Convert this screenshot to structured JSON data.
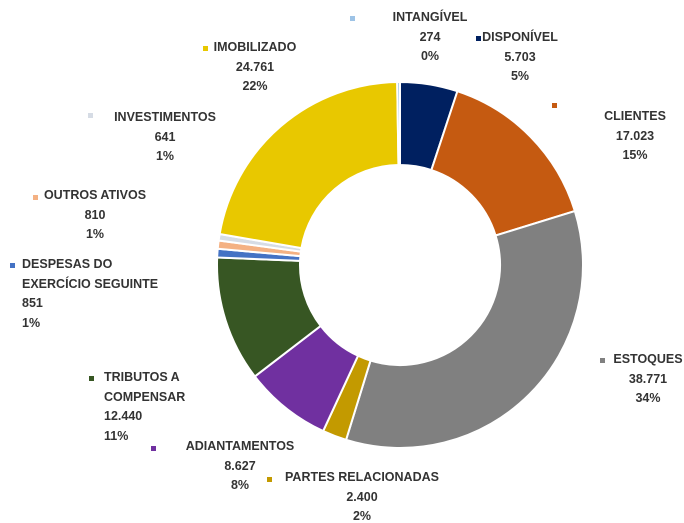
{
  "chart_data": {
    "type": "donut",
    "categories": [
      "DISPONÍVEL",
      "CLIENTES",
      "ESTOQUES",
      "PARTES RELACIONADAS",
      "ADIANTAMENTOS",
      "TRIBUTOS A COMPENSAR",
      "DESPESAS DO EXERCÍCIO SEGUINTE",
      "OUTROS ATIVOS",
      "INVESTIMENTOS",
      "IMOBILIZADO",
      "INTANGÍVEL"
    ],
    "values": [
      5703,
      17023,
      38771,
      2400,
      8627,
      12440,
      851,
      810,
      641,
      24761,
      274
    ],
    "value_labels": [
      "5.703",
      "17.023",
      "38.771",
      "2.400",
      "8.627",
      "12.440",
      "851",
      "810",
      "641",
      "24.761",
      "274"
    ],
    "percent_labels": [
      "5%",
      "15%",
      "34%",
      "2%",
      "8%",
      "11%",
      "1%",
      "1%",
      "1%",
      "22%",
      "0%"
    ],
    "colors": [
      "#002060",
      "#c55a11",
      "#808080",
      "#c39a00",
      "#7030a0",
      "#375623",
      "#4472c4",
      "#f4b183",
      "#d6dce5",
      "#e8c800",
      "#9dc3e6"
    ]
  }
}
